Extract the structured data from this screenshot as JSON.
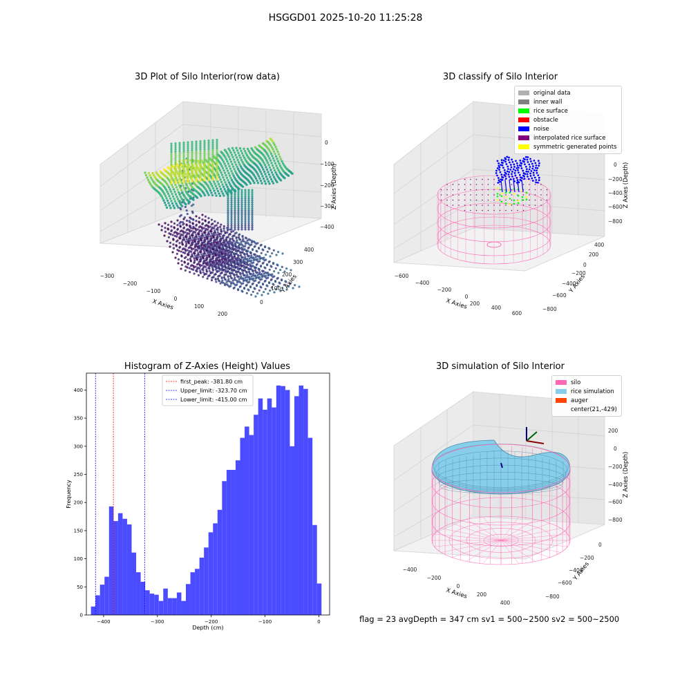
{
  "suptitle": "HSGGD01 2025-10-20 11:25:28",
  "panels": {
    "raw": {
      "title": "3D Plot of Silo Interior(row data)",
      "xlabel": "X Axies",
      "ylabel": "Y Axies",
      "zlabel": "Z Axies (Depth)",
      "xticks": [
        "−300",
        "−200",
        "−100",
        "0",
        "100",
        "200"
      ],
      "yticks": [
        "0",
        "100",
        "200",
        "300",
        "400"
      ],
      "zticks": [
        "0",
        "−100",
        "−200",
        "−300",
        "−400"
      ]
    },
    "classify": {
      "title": "3D classify of Silo Interior",
      "xlabel": "X Axies",
      "ylabel": "Y Axies",
      "zlabel": "Z Axies (Depth)",
      "xticks": [
        "−600",
        "−400",
        "−200",
        "0",
        "200",
        "400",
        "600"
      ],
      "yticks": [
        "−800",
        "−600",
        "−400",
        "−200",
        "0",
        "200",
        "400"
      ],
      "zticks": [
        "200",
        "0",
        "−200",
        "−400",
        "−600",
        "−800"
      ],
      "legend": [
        {
          "label": "original data",
          "color": "#b0b0b0"
        },
        {
          "label": "inner wall",
          "color": "#808080"
        },
        {
          "label": "rice surface",
          "color": "#00ff00"
        },
        {
          "label": "obstacle",
          "color": "#ff0000"
        },
        {
          "label": "noise",
          "color": "#0000ff"
        },
        {
          "label": "interpolated rice surface",
          "color": "#800080"
        },
        {
          "label": "symmetric generated points",
          "color": "#ffff00"
        }
      ]
    },
    "simulation": {
      "title": "3D simulation of Silo Interior",
      "xlabel": "X Axies",
      "ylabel": "Y Axies",
      "zlabel": "Z Axies (Depth)",
      "xticks": [
        "−400",
        "−200",
        "0",
        "200",
        "400"
      ],
      "yticks": [
        "−800",
        "−600",
        "−400",
        "−200",
        "0"
      ],
      "zticks": [
        "200",
        "0",
        "−200",
        "−400",
        "−600",
        "−800"
      ],
      "legend": [
        {
          "label": "silo",
          "color": "#ff69b4"
        },
        {
          "label": "rice simulation",
          "color": "#87ceeb"
        },
        {
          "label": "auger",
          "color": "#ff4500"
        },
        {
          "label": "center(21,-429)",
          "color": ""
        }
      ],
      "footer": "flag = 23  avgDepth = 347 cm  sv1 = 500~2500  sv2 = 500~2500"
    }
  },
  "chart_data": {
    "type": "bar",
    "title": "Histogram of Z-Axies (Height) Values",
    "xlabel": "Depth (cm)",
    "ylabel": "Frequency",
    "xlim": [
      -432,
      20
    ],
    "ylim": [
      0,
      430
    ],
    "xticks": [
      -400,
      -300,
      -200,
      -100,
      0
    ],
    "xtick_labels": [
      "−400",
      "−300",
      "−200",
      "−100",
      "0"
    ],
    "yticks": [
      0,
      50,
      100,
      150,
      200,
      250,
      300,
      350,
      400
    ],
    "bar_color": "#4b4bff",
    "bin_edges": [
      -423.5,
      -415.1,
      -406.7,
      -398.3,
      -389.9,
      -381.5,
      -373.1,
      -364.7,
      -356.3,
      -347.9,
      -339.5,
      -331.1,
      -322.7,
      -314.3,
      -305.9,
      -297.5,
      -289.1,
      -280.7,
      -272.3,
      -263.9,
      -255.5,
      -247.1,
      -238.7,
      -230.3,
      -221.9,
      -213.5,
      -205.1,
      -196.7,
      -188.3,
      -179.9,
      -171.5,
      -163.1,
      -154.7,
      -146.3,
      -137.9,
      -129.5,
      -121.1,
      -112.7,
      -104.3,
      -95.9,
      -87.5,
      -79.1,
      -70.7,
      -62.3,
      -53.9,
      -45.5,
      -37.1,
      -28.7,
      -20.3,
      -11.9,
      -3.5,
      4.9
    ],
    "counts": [
      15,
      35,
      54,
      68,
      193,
      167,
      181,
      171,
      161,
      111,
      76,
      59,
      44,
      38,
      36,
      25,
      47,
      30,
      30,
      40,
      25,
      55,
      76,
      82,
      102,
      120,
      147,
      163,
      187,
      238,
      258,
      258,
      275,
      315,
      335,
      320,
      356,
      385,
      365,
      385,
      369,
      408,
      407,
      400,
      300,
      389,
      408,
      402,
      315,
      160,
      56
    ],
    "reference_lines": [
      {
        "label": "first_peak: -381.80 cm",
        "x": -381.8,
        "color": "#ff0000"
      },
      {
        "label": "Upper_limit: -323.70 cm",
        "x": -323.7,
        "color": "#0000ff"
      },
      {
        "label": "Lower_limit: -415.00 cm",
        "x": -415.0,
        "color": "#0000ff"
      }
    ]
  }
}
